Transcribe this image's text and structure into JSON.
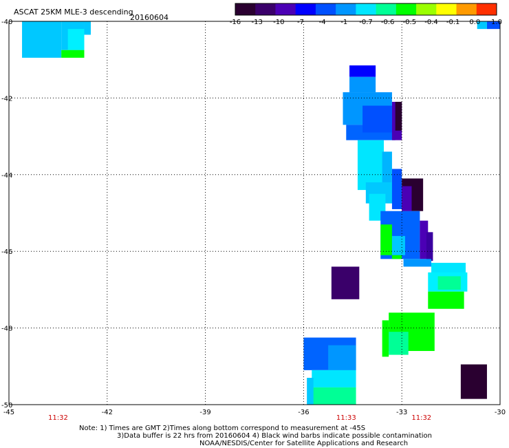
{
  "header": {
    "title": "ASCAT 25KM MLE-3 descending",
    "date": "20160604"
  },
  "colorbar": {
    "tick_labels": [
      "-16",
      "-13",
      "-10",
      "-7",
      "-4",
      "-1",
      "-0.7",
      "-0.6",
      "-0.5",
      "-0.4",
      "-0.1",
      "0.0",
      "1.0"
    ],
    "colors": [
      "#2a0030",
      "#3a006a",
      "#4b00b5",
      "#0000ff",
      "#0050ff",
      "#0096ff",
      "#00e6ff",
      "#00ff96",
      "#00ff00",
      "#9bff00",
      "#ffff00",
      "#ff9a00",
      "#ff3000"
    ]
  },
  "footer": {
    "note_line1": "Note: 1) Times are GMT 2)Times along bottom correspond to measurement at -45S",
    "note_line2": "3)Data buffer is 22 hrs from 20160604 4) Black wind barbs indicate possible contamination",
    "credit": "NOAA/NESDIS/Center for Satellite Applications and Research"
  },
  "chart_data": {
    "type": "heatmap",
    "title": "ASCAT 25KM MLE-3 descending",
    "subtitle": "20160604",
    "x_ticks": [
      -45,
      -42,
      -39,
      -36,
      -33,
      -30
    ],
    "x_tick_labels": [
      "-45",
      "-42",
      "-39",
      "-36",
      "-33",
      "-30"
    ],
    "y_ticks": [
      -40,
      -42,
      -44,
      -46,
      -48,
      -50
    ],
    "y_tick_labels": [
      "-40",
      "-42",
      "-44",
      "-46",
      "-48",
      "-50"
    ],
    "xlim": [
      -45,
      -30
    ],
    "ylim": [
      -50,
      -40
    ],
    "grid": true,
    "time_labels": [
      {
        "x": -43.5,
        "text": "11:32"
      },
      {
        "x": -34.7,
        "text": "11:33"
      },
      {
        "x": -32.4,
        "text": "11:32"
      }
    ],
    "colorbar_range_labels": [
      "-16",
      "1.0"
    ],
    "cells": [
      {
        "x0": -44.6,
        "x1": -43.4,
        "y0": -40.0,
        "y1": -40.95,
        "c": "#00c8ff"
      },
      {
        "x0": -43.4,
        "x1": -42.7,
        "y0": -40.0,
        "y1": -40.75,
        "c": "#00c8ff"
      },
      {
        "x0": -42.7,
        "x1": -42.5,
        "y0": -40.0,
        "y1": -40.35,
        "c": "#00c8ff"
      },
      {
        "x0": -43.2,
        "x1": -42.7,
        "y0": -40.2,
        "y1": -40.75,
        "c": "#00f0ff"
      },
      {
        "x0": -43.4,
        "x1": -42.7,
        "y0": -40.75,
        "y1": -40.95,
        "c": "#00ff00"
      },
      {
        "x0": -34.6,
        "x1": -33.8,
        "y0": -41.15,
        "y1": -41.45,
        "c": "#0000ff"
      },
      {
        "x0": -34.6,
        "x1": -33.8,
        "y0": -41.45,
        "y1": -41.85,
        "c": "#0096ff"
      },
      {
        "x0": -34.8,
        "x1": -33.3,
        "y0": -41.85,
        "y1": -42.7,
        "c": "#0096ff"
      },
      {
        "x0": -34.7,
        "x1": -33.2,
        "y0": -42.7,
        "y1": -43.1,
        "c": "#0064ff"
      },
      {
        "x0": -34.2,
        "x1": -33.3,
        "y0": -42.2,
        "y1": -42.9,
        "c": "#0050ff"
      },
      {
        "x0": -33.3,
        "x1": -33.0,
        "y0": -42.1,
        "y1": -43.1,
        "c": "#4b00b5"
      },
      {
        "x0": -33.2,
        "x1": -33.0,
        "y0": -42.1,
        "y1": -42.85,
        "c": "#2a0030"
      },
      {
        "x0": -34.35,
        "x1": -33.55,
        "y0": -43.1,
        "y1": -44.4,
        "c": "#00e6ff"
      },
      {
        "x0": -33.6,
        "x1": -33.3,
        "y0": -43.4,
        "y1": -44.4,
        "c": "#00b4ff"
      },
      {
        "x0": -34.1,
        "x1": -33.2,
        "y0": -44.2,
        "y1": -44.75,
        "c": "#00c8ff"
      },
      {
        "x0": -33.3,
        "x1": -33.0,
        "y0": -43.85,
        "y1": -44.9,
        "c": "#0050ff"
      },
      {
        "x0": -33.0,
        "x1": -32.35,
        "y0": -44.1,
        "y1": -44.95,
        "c": "#2a0030"
      },
      {
        "x0": -33.0,
        "x1": -32.7,
        "y0": -44.3,
        "y1": -44.95,
        "c": "#4b00b5"
      },
      {
        "x0": -34.0,
        "x1": -33.5,
        "y0": -44.5,
        "y1": -45.2,
        "c": "#00e6ff"
      },
      {
        "x0": -33.65,
        "x1": -32.45,
        "y0": -44.95,
        "y1": -46.2,
        "c": "#0064ff"
      },
      {
        "x0": -33.65,
        "x1": -33.3,
        "y0": -45.3,
        "y1": -46.1,
        "c": "#00ff00"
      },
      {
        "x0": -33.3,
        "x1": -32.9,
        "y0": -45.6,
        "y1": -46.1,
        "c": "#00c8ff"
      },
      {
        "x0": -32.45,
        "x1": -32.2,
        "y0": -45.2,
        "y1": -46.2,
        "c": "#4b00b5"
      },
      {
        "x0": -32.25,
        "x1": -32.05,
        "y0": -45.5,
        "y1": -46.25,
        "c": "#3a00a0"
      },
      {
        "x0": -33.3,
        "x1": -33.0,
        "y0": -46.1,
        "y1": -46.2,
        "c": "#00ff00"
      },
      {
        "x0": -32.95,
        "x1": -32.1,
        "y0": -46.2,
        "y1": -46.4,
        "c": "#0096ff"
      },
      {
        "x0": -32.1,
        "x1": -31.05,
        "y0": -46.3,
        "y1": -46.6,
        "c": "#00e6ff"
      },
      {
        "x0": -32.2,
        "x1": -31.0,
        "y0": -46.55,
        "y1": -47.05,
        "c": "#00f0ff"
      },
      {
        "x0": -31.9,
        "x1": -31.2,
        "y0": -46.65,
        "y1": -47.0,
        "c": "#00ff96"
      },
      {
        "x0": -32.2,
        "x1": -31.1,
        "y0": -47.05,
        "y1": -47.5,
        "c": "#00ff00"
      },
      {
        "x0": -35.15,
        "x1": -34.3,
        "y0": -46.4,
        "y1": -47.25,
        "c": "#3a006a"
      },
      {
        "x0": -33.4,
        "x1": -32.0,
        "y0": -47.6,
        "y1": -48.6,
        "c": "#00ff00"
      },
      {
        "x0": -33.6,
        "x1": -33.4,
        "y0": -47.8,
        "y1": -48.75,
        "c": "#00ff00"
      },
      {
        "x0": -33.4,
        "x1": -32.8,
        "y0": -48.1,
        "y1": -48.7,
        "c": "#00ff96"
      },
      {
        "x0": -36.0,
        "x1": -34.4,
        "y0": -48.25,
        "y1": -49.1,
        "c": "#0064ff"
      },
      {
        "x0": -35.25,
        "x1": -34.4,
        "y0": -48.45,
        "y1": -49.1,
        "c": "#0096ff"
      },
      {
        "x0": -35.75,
        "x1": -34.4,
        "y0": -49.1,
        "y1": -49.55,
        "c": "#00e6ff"
      },
      {
        "x0": -35.8,
        "x1": -34.4,
        "y0": -49.55,
        "y1": -50.0,
        "c": "#00ff96"
      },
      {
        "x0": -35.9,
        "x1": -35.7,
        "y0": -49.3,
        "y1": -50.0,
        "c": "#00c8ff"
      },
      {
        "x0": -31.2,
        "x1": -30.4,
        "y0": -48.95,
        "y1": -49.85,
        "c": "#2a0030"
      },
      {
        "x0": -30.4,
        "x1": -30.0,
        "y0": -40.0,
        "y1": -40.2,
        "c": "#0050ff"
      },
      {
        "x0": -30.7,
        "x1": -30.4,
        "y0": -40.0,
        "y1": -40.2,
        "c": "#00c8ff"
      }
    ]
  }
}
